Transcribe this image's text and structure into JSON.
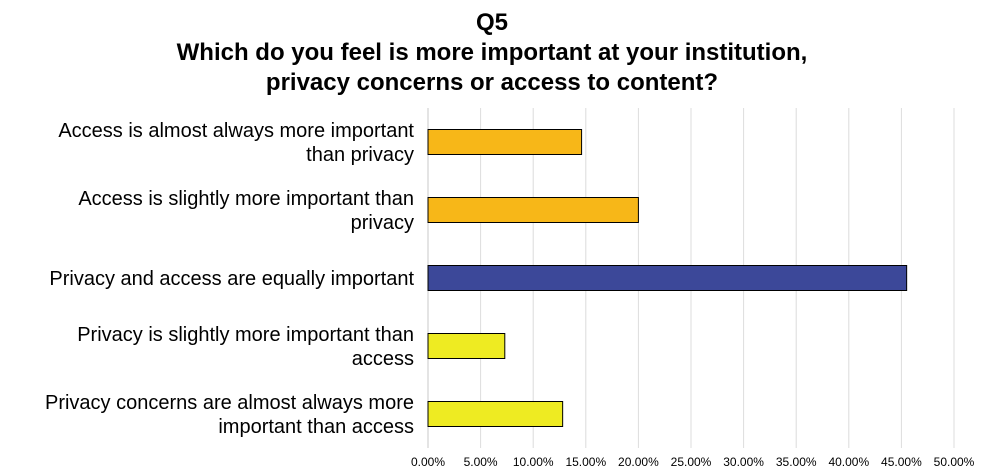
{
  "chart_data": {
    "type": "bar",
    "orientation": "horizontal",
    "title_lines": [
      "Q5",
      "Which do you feel is more important at your institution,",
      "privacy concerns or access to content?"
    ],
    "categories": [
      {
        "lines": [
          "Access is almost always more important",
          "than privacy"
        ]
      },
      {
        "lines": [
          "Access is slightly more important than",
          "privacy"
        ]
      },
      {
        "lines": [
          "Privacy and access are equally important"
        ]
      },
      {
        "lines": [
          "Privacy is slightly more important than",
          "access"
        ]
      },
      {
        "lines": [
          "Privacy concerns are almost always more",
          "important than access"
        ]
      }
    ],
    "values": [
      14.6,
      20.0,
      45.5,
      7.3,
      12.8
    ],
    "bar_colors": [
      "#F7B718",
      "#F7B718",
      "#3C4899",
      "#EEEB22",
      "#EEEB22"
    ],
    "xlim": [
      0,
      50
    ],
    "x_ticks": [
      0,
      5,
      10,
      15,
      20,
      25,
      30,
      35,
      40,
      45,
      50
    ],
    "x_tick_labels": [
      "0.00%",
      "5.00%",
      "10.00%",
      "15.00%",
      "20.00%",
      "25.00%",
      "30.00%",
      "35.00%",
      "40.00%",
      "45.00%",
      "50.00%"
    ],
    "grid": "vertical",
    "legend": "none"
  }
}
